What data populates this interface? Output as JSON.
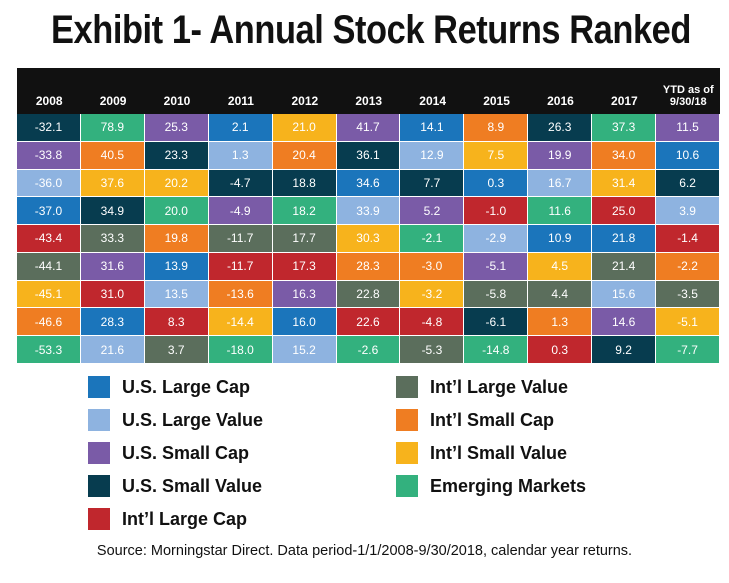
{
  "title": "Exhibit 1- Annual Stock Returns Ranked",
  "source": "Source: Morningstar Direct. Data period-1/1/2008-9/30/2018, calendar year returns.",
  "colors": {
    "US Large Cap": "#1b75bb",
    "US Large Value": "#8eb3e0",
    "US Small Cap": "#7a5ba7",
    "US Small Value": "#073c4f",
    "Intl Large Cap": "#c0272d",
    "Intl Large Value": "#5b6e5c",
    "Intl Small Cap": "#ef7d22",
    "Intl Small Value": "#f7b31c",
    "Emerging Markets": "#33b17e"
  },
  "legend": [
    {
      "label": "U.S. Large Cap",
      "key": "US Large Cap"
    },
    {
      "label": "U.S. Large Value",
      "key": "US Large Value"
    },
    {
      "label": "U.S. Small Cap",
      "key": "US Small Cap"
    },
    {
      "label": "U.S. Small Value",
      "key": "US Small Value"
    },
    {
      "label": "Int’l Large Cap",
      "key": "Intl Large Cap"
    },
    {
      "label": "Int’l Large Value",
      "key": "Intl Large Value"
    },
    {
      "label": "Int’l Small Cap",
      "key": "Intl Small Cap"
    },
    {
      "label": "Int’l Small Value",
      "key": "Intl Small Value"
    },
    {
      "label": "Emerging Markets",
      "key": "Emerging Markets"
    }
  ],
  "chart_data": {
    "type": "table",
    "columns": [
      {
        "label": "2008",
        "cells": [
          {
            "v": "-32.1",
            "k": "US Small Value"
          },
          {
            "v": "-33.8",
            "k": "US Small Cap"
          },
          {
            "v": "-36.0",
            "k": "US Large Value"
          },
          {
            "v": "-37.0",
            "k": "US Large Cap"
          },
          {
            "v": "-43.4",
            "k": "Intl Large Cap"
          },
          {
            "v": "-44.1",
            "k": "Intl Large Value"
          },
          {
            "v": "-45.1",
            "k": "Intl Small Value"
          },
          {
            "v": "-46.6",
            "k": "Intl Small Cap"
          },
          {
            "v": "-53.3",
            "k": "Emerging Markets"
          }
        ]
      },
      {
        "label": "2009",
        "cells": [
          {
            "v": "78.9",
            "k": "Emerging Markets"
          },
          {
            "v": "40.5",
            "k": "Intl Small Cap"
          },
          {
            "v": "37.6",
            "k": "Intl Small Value"
          },
          {
            "v": "34.9",
            "k": "US Small Value"
          },
          {
            "v": "33.3",
            "k": "Intl Large Value"
          },
          {
            "v": "31.6",
            "k": "US Small Cap"
          },
          {
            "v": "31.0",
            "k": "Intl Large Cap"
          },
          {
            "v": "28.3",
            "k": "US Large Cap"
          },
          {
            "v": "21.6",
            "k": "US Large Value"
          }
        ]
      },
      {
        "label": "2010",
        "cells": [
          {
            "v": "25.3",
            "k": "US Small Cap"
          },
          {
            "v": "23.3",
            "k": "US Small Value"
          },
          {
            "v": "20.2",
            "k": "Intl Small Value"
          },
          {
            "v": "20.0",
            "k": "Emerging Markets"
          },
          {
            "v": "19.8",
            "k": "Intl Small Cap"
          },
          {
            "v": "13.9",
            "k": "US Large Cap"
          },
          {
            "v": "13.5",
            "k": "US Large Value"
          },
          {
            "v": "8.3",
            "k": "Intl Large Cap"
          },
          {
            "v": "3.7",
            "k": "Intl Large Value"
          }
        ]
      },
      {
        "label": "2011",
        "cells": [
          {
            "v": "2.1",
            "k": "US Large Cap"
          },
          {
            "v": "1.3",
            "k": "US Large Value"
          },
          {
            "v": "-4.7",
            "k": "US Small Value"
          },
          {
            "v": "-4.9",
            "k": "US Small Cap"
          },
          {
            "v": "-11.7",
            "k": "Intl Large Value"
          },
          {
            "v": "-11.7",
            "k": "Intl Large Cap"
          },
          {
            "v": "-13.6",
            "k": "Intl Small Cap"
          },
          {
            "v": "-14.4",
            "k": "Intl Small Value"
          },
          {
            "v": "-18.0",
            "k": "Emerging Markets"
          }
        ]
      },
      {
        "label": "2012",
        "cells": [
          {
            "v": "21.0",
            "k": "Intl Small Value"
          },
          {
            "v": "20.4",
            "k": "Intl Small Cap"
          },
          {
            "v": "18.8",
            "k": "US Small Value"
          },
          {
            "v": "18.2",
            "k": "Emerging Markets"
          },
          {
            "v": "17.7",
            "k": "Intl Large Value"
          },
          {
            "v": "17.3",
            "k": "Intl Large Cap"
          },
          {
            "v": "16.3",
            "k": "US Small Cap"
          },
          {
            "v": "16.0",
            "k": "US Large Cap"
          },
          {
            "v": "15.2",
            "k": "US Large Value"
          }
        ]
      },
      {
        "label": "2013",
        "cells": [
          {
            "v": "41.7",
            "k": "US Small Cap"
          },
          {
            "v": "36.1",
            "k": "US Small Value"
          },
          {
            "v": "34.6",
            "k": "US Large Cap"
          },
          {
            "v": "33.9",
            "k": "US Large Value"
          },
          {
            "v": "30.3",
            "k": "Intl Small Value"
          },
          {
            "v": "28.3",
            "k": "Intl Small Cap"
          },
          {
            "v": "22.8",
            "k": "Intl Large Value"
          },
          {
            "v": "22.6",
            "k": "Intl Large Cap"
          },
          {
            "v": "-2.6",
            "k": "Emerging Markets"
          }
        ]
      },
      {
        "label": "2014",
        "cells": [
          {
            "v": "14.1",
            "k": "US Large Cap"
          },
          {
            "v": "12.9",
            "k": "US Large Value"
          },
          {
            "v": "7.7",
            "k": "US Small Value"
          },
          {
            "v": "5.2",
            "k": "US Small Cap"
          },
          {
            "v": "-2.1",
            "k": "Emerging Markets"
          },
          {
            "v": "-3.0",
            "k": "Intl Small Cap"
          },
          {
            "v": "-3.2",
            "k": "Intl Small Value"
          },
          {
            "v": "-4.8",
            "k": "Intl Large Cap"
          },
          {
            "v": "-5.3",
            "k": "Intl Large Value"
          }
        ]
      },
      {
        "label": "2015",
        "cells": [
          {
            "v": "8.9",
            "k": "Intl Small Cap"
          },
          {
            "v": "7.5",
            "k": "Intl Small Value"
          },
          {
            "v": "0.3",
            "k": "US Large Cap"
          },
          {
            "v": "-1.0",
            "k": "Intl Large Cap"
          },
          {
            "v": "-2.9",
            "k": "US Large Value"
          },
          {
            "v": "-5.1",
            "k": "US Small Cap"
          },
          {
            "v": "-5.8",
            "k": "Intl Large Value"
          },
          {
            "v": "-6.1",
            "k": "US Small Value"
          },
          {
            "v": "-14.8",
            "k": "Emerging Markets"
          }
        ]
      },
      {
        "label": "2016",
        "cells": [
          {
            "v": "26.3",
            "k": "US Small Value"
          },
          {
            "v": "19.9",
            "k": "US Small Cap"
          },
          {
            "v": "16.7",
            "k": "US Large Value"
          },
          {
            "v": "11.6",
            "k": "Emerging Markets"
          },
          {
            "v": "10.9",
            "k": "US Large Cap"
          },
          {
            "v": "4.5",
            "k": "Intl Small Value"
          },
          {
            "v": "4.4",
            "k": "Intl Large Value"
          },
          {
            "v": "1.3",
            "k": "Intl Small Cap"
          },
          {
            "v": "0.3",
            "k": "Intl Large Cap"
          }
        ]
      },
      {
        "label": "2017",
        "cells": [
          {
            "v": "37.3",
            "k": "Emerging Markets"
          },
          {
            "v": "34.0",
            "k": "Intl Small Cap"
          },
          {
            "v": "31.4",
            "k": "Intl Small Value"
          },
          {
            "v": "25.0",
            "k": "Intl Large Cap"
          },
          {
            "v": "21.8",
            "k": "US Large Cap"
          },
          {
            "v": "21.4",
            "k": "Intl Large Value"
          },
          {
            "v": "15.6",
            "k": "US Large Value"
          },
          {
            "v": "14.6",
            "k": "US Small Cap"
          },
          {
            "v": "9.2",
            "k": "US Small Value"
          }
        ]
      },
      {
        "label": "YTD as of 9/30/18",
        "label_lines": [
          "YTD as of",
          "9/30/18"
        ],
        "cells": [
          {
            "v": "11.5",
            "k": "US Small Cap"
          },
          {
            "v": "10.6",
            "k": "US Large Cap"
          },
          {
            "v": "6.2",
            "k": "US Small Value"
          },
          {
            "v": "3.9",
            "k": "US Large Value"
          },
          {
            "v": "-1.4",
            "k": "Intl Large Cap"
          },
          {
            "v": "-2.2",
            "k": "Intl Small Cap"
          },
          {
            "v": "-3.5",
            "k": "Intl Large Value"
          },
          {
            "v": "-5.1",
            "k": "Intl Small Value"
          },
          {
            "v": "-7.7",
            "k": "Emerging Markets"
          }
        ]
      }
    ]
  }
}
